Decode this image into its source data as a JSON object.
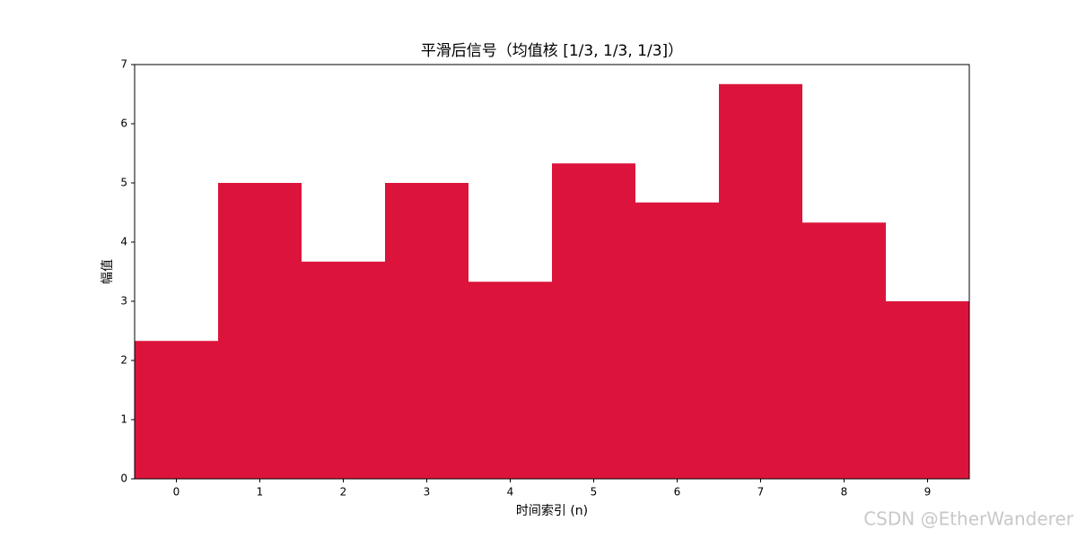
{
  "chart_data": {
    "type": "bar",
    "title": "平滑后信号（均值核 [1/3, 1/3, 1/3]）",
    "x_label": "时间索引 (n)",
    "y_label": "幅值",
    "x": [
      0,
      1,
      2,
      3,
      4,
      5,
      6,
      7,
      8,
      9
    ],
    "values": [
      2.33,
      5,
      3.67,
      5,
      3.33,
      5.33,
      4.67,
      6.67,
      4.33,
      3
    ],
    "color": "#dc143c",
    "xlim": [
      -0.5,
      9.5
    ],
    "xticks": [
      0,
      1,
      2,
      3,
      4,
      5,
      6,
      7,
      8,
      9
    ],
    "ylim": [
      0,
      7
    ],
    "yticks": [
      0,
      1,
      2,
      3,
      4,
      5,
      6,
      7
    ],
    "grid": false
  },
  "watermark": "CSDN @EtherWanderer"
}
